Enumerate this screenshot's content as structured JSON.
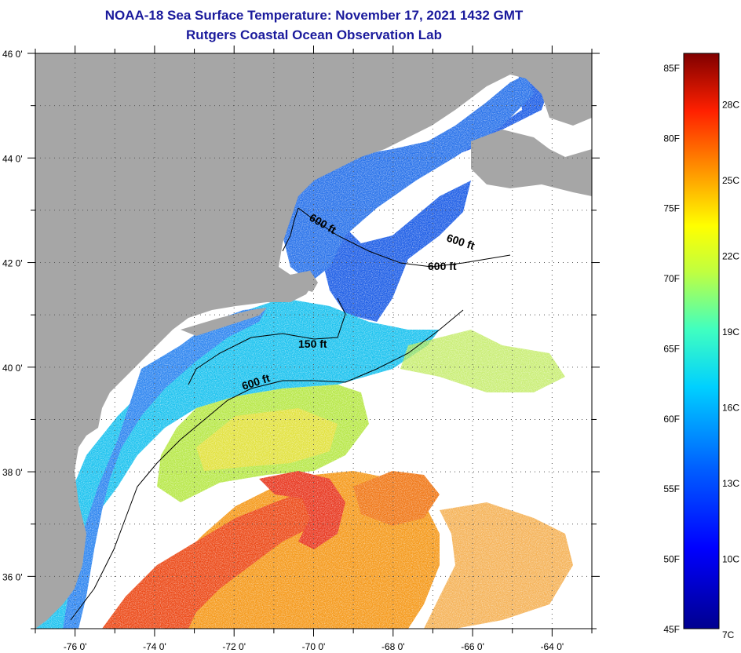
{
  "header": {
    "title": "NOAA-18 Sea Surface Temperature:  November 17, 2021 1432 GMT",
    "subtitle": "Rutgers Coastal Ocean Observation Lab"
  },
  "map": {
    "lat_labels": [
      "46 0'",
      "44 0'",
      "42 0'",
      "40 0'",
      "38 0'",
      "36 0'"
    ],
    "lon_labels": [
      "-76 0'",
      "-74 0'",
      "-72 0'",
      "-70 0'",
      "-68 0'",
      "-66 0'",
      "-64 0'"
    ],
    "lat_range": [
      35,
      46
    ],
    "lon_range": [
      -77,
      -63
    ],
    "depth_contours": [
      {
        "label": "600 ft",
        "id": "depth-label-600-maine"
      },
      {
        "label": "600 ft",
        "id": "depth-label-600-east"
      },
      {
        "label": "600 ft",
        "id": "depth-label-600-georges"
      },
      {
        "label": "150 ft",
        "id": "depth-label-150"
      },
      {
        "label": "600 ft",
        "id": "depth-label-600-shelf"
      }
    ],
    "colors": {
      "land": "#a6a6a6",
      "cold": "#1a5ee6",
      "cool": "#19c8f0",
      "mild": "#b8e84a",
      "warm": "#f07818",
      "hot": "#e83018"
    }
  },
  "colorbar": {
    "fahrenheit": [
      "85F",
      "80F",
      "75F",
      "70F",
      "65F",
      "60F",
      "55F",
      "50F",
      "45F"
    ],
    "celsius": [
      "28C",
      "25C",
      "22C",
      "19C",
      "16C",
      "13C",
      "10C",
      "7C"
    ],
    "range_f": [
      45,
      86
    ]
  }
}
